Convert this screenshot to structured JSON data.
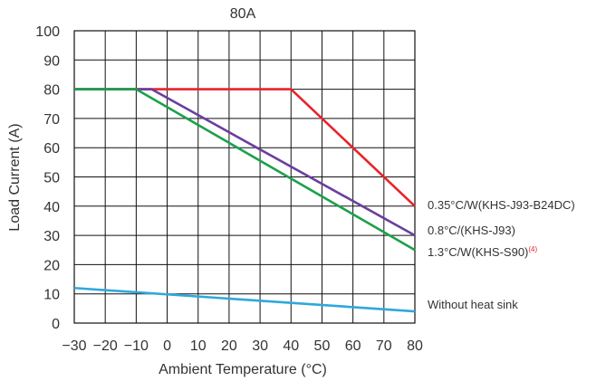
{
  "chart_data": {
    "type": "line",
    "title": "80A",
    "xlabel": "Ambient Temperature (°C)",
    "ylabel": "Load Current (A)",
    "xlim": [
      -30,
      80
    ],
    "ylim": [
      0,
      100
    ],
    "xticks": [
      -30,
      -20,
      -10,
      0,
      10,
      20,
      30,
      40,
      50,
      60,
      70,
      80
    ],
    "yticks": [
      0,
      10,
      20,
      30,
      40,
      50,
      60,
      70,
      80,
      90,
      100
    ],
    "grid": true,
    "series": [
      {
        "name": "0.35°C/W(KHS-J93-B24DC)",
        "color": "#e8232a",
        "x": [
          -30,
          40,
          80
        ],
        "y": [
          80,
          80,
          40
        ]
      },
      {
        "name": "0.8°C/(KHS-J93)",
        "color": "#6a3f9e",
        "x": [
          -30,
          -5,
          80
        ],
        "y": [
          80,
          80,
          30
        ]
      },
      {
        "name": "1.3°C/W(KHS-S90)",
        "footnote": "(4)",
        "color": "#1aa14a",
        "x": [
          -30,
          -10,
          80
        ],
        "y": [
          80,
          80,
          25
        ]
      },
      {
        "name": "Without heat sink",
        "color": "#2ea8dc",
        "x": [
          -30,
          80
        ],
        "y": [
          12,
          4
        ]
      }
    ]
  }
}
